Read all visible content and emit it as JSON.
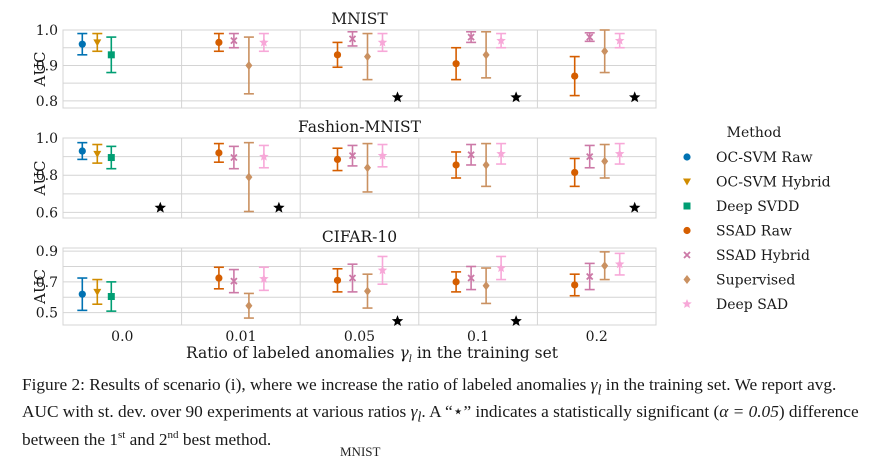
{
  "figure": {
    "xlabel_pre": "Ratio of labeled anomalies ",
    "xlabel_sym": "γ",
    "xlabel_sub": "l",
    "xlabel_post": " in the training set",
    "legend_title": "Method"
  },
  "caption": {
    "lead": "Figure 2: Results of scenario (i), where we increase the ratio of labeled anomalies ",
    "g1": "γ",
    "g1sub": "l",
    "mid1": " in the training set. We report avg. AUC with st. dev. over 90 experiments at various ratios ",
    "g2": "γ",
    "g2sub": "l",
    "mid2": ". A “⋆” indicates a statistically significant (",
    "alpha": "α = 0.05",
    "mid3": ") difference between the 1",
    "sup1": "st",
    "mid4": " and 2",
    "sup2": "nd",
    "tail": " best method."
  },
  "cutoff_text": "MNIST",
  "chart_data": {
    "type": "scatter",
    "xlabel": "Ratio of labeled anomalies γl in the training set",
    "categories": [
      "0.0",
      "0.01",
      "0.05",
      "0.1",
      "0.2"
    ],
    "methods": [
      {
        "name": "OC-SVM Raw",
        "color": "#0072b2",
        "marker": "circle"
      },
      {
        "name": "OC-SVM Hybrid",
        "color": "#d08c00",
        "marker": "triangle"
      },
      {
        "name": "Deep SVDD",
        "color": "#009e73",
        "marker": "square"
      },
      {
        "name": "SSAD Raw",
        "color": "#d55e00",
        "marker": "circle"
      },
      {
        "name": "SSAD Hybrid",
        "color": "#cc79a7",
        "marker": "x"
      },
      {
        "name": "Supervised",
        "color": "#ca9161",
        "marker": "diamond"
      },
      {
        "name": "Deep SAD",
        "color": "#f7a8d8",
        "marker": "star"
      }
    ],
    "panels": [
      {
        "title": "MNIST",
        "ylabel": "AUC",
        "ylim": [
          0.78,
          1.0
        ],
        "yticks": [
          0.8,
          0.9,
          1.0
        ],
        "points": [
          {
            "cat": 0,
            "method": 0,
            "mean": 0.96,
            "sd": 0.03
          },
          {
            "cat": 0,
            "method": 1,
            "mean": 0.965,
            "sd": 0.025
          },
          {
            "cat": 0,
            "method": 2,
            "mean": 0.93,
            "sd": 0.05
          },
          {
            "cat": 1,
            "method": 3,
            "mean": 0.965,
            "sd": 0.025
          },
          {
            "cat": 1,
            "method": 4,
            "mean": 0.97,
            "sd": 0.02
          },
          {
            "cat": 1,
            "method": 5,
            "mean": 0.9,
            "sd": 0.08
          },
          {
            "cat": 1,
            "method": 6,
            "mean": 0.965,
            "sd": 0.025
          },
          {
            "cat": 2,
            "method": 3,
            "mean": 0.93,
            "sd": 0.035
          },
          {
            "cat": 2,
            "method": 4,
            "mean": 0.975,
            "sd": 0.02
          },
          {
            "cat": 2,
            "method": 5,
            "mean": 0.925,
            "sd": 0.065
          },
          {
            "cat": 2,
            "method": 6,
            "mean": 0.965,
            "sd": 0.025
          },
          {
            "cat": 3,
            "method": 3,
            "mean": 0.905,
            "sd": 0.045
          },
          {
            "cat": 3,
            "method": 4,
            "mean": 0.98,
            "sd": 0.015
          },
          {
            "cat": 3,
            "method": 5,
            "mean": 0.93,
            "sd": 0.065
          },
          {
            "cat": 3,
            "method": 6,
            "mean": 0.97,
            "sd": 0.02
          },
          {
            "cat": 4,
            "method": 3,
            "mean": 0.87,
            "sd": 0.055
          },
          {
            "cat": 4,
            "method": 4,
            "mean": 0.98,
            "sd": 0.012
          },
          {
            "cat": 4,
            "method": 5,
            "mean": 0.94,
            "sd": 0.06
          },
          {
            "cat": 4,
            "method": 6,
            "mean": 0.97,
            "sd": 0.02
          }
        ],
        "stars": [
          {
            "cat": 2,
            "value": 0.81
          },
          {
            "cat": 3,
            "value": 0.81
          },
          {
            "cat": 4,
            "value": 0.81
          }
        ]
      },
      {
        "title": "Fashion-MNIST",
        "ylabel": "AUC",
        "ylim": [
          0.57,
          1.0
        ],
        "yticks": [
          0.6,
          0.8,
          1.0
        ],
        "points": [
          {
            "cat": 0,
            "method": 0,
            "mean": 0.93,
            "sd": 0.045
          },
          {
            "cat": 0,
            "method": 1,
            "mean": 0.915,
            "sd": 0.05
          },
          {
            "cat": 0,
            "method": 2,
            "mean": 0.895,
            "sd": 0.06
          },
          {
            "cat": 1,
            "method": 3,
            "mean": 0.92,
            "sd": 0.05
          },
          {
            "cat": 1,
            "method": 4,
            "mean": 0.895,
            "sd": 0.06
          },
          {
            "cat": 1,
            "method": 5,
            "mean": 0.79,
            "sd": 0.185
          },
          {
            "cat": 1,
            "method": 6,
            "mean": 0.9,
            "sd": 0.06
          },
          {
            "cat": 2,
            "method": 3,
            "mean": 0.885,
            "sd": 0.06
          },
          {
            "cat": 2,
            "method": 4,
            "mean": 0.905,
            "sd": 0.055
          },
          {
            "cat": 2,
            "method": 5,
            "mean": 0.84,
            "sd": 0.13
          },
          {
            "cat": 2,
            "method": 6,
            "mean": 0.905,
            "sd": 0.06
          },
          {
            "cat": 3,
            "method": 3,
            "mean": 0.855,
            "sd": 0.07
          },
          {
            "cat": 3,
            "method": 4,
            "mean": 0.91,
            "sd": 0.055
          },
          {
            "cat": 3,
            "method": 5,
            "mean": 0.855,
            "sd": 0.115
          },
          {
            "cat": 3,
            "method": 6,
            "mean": 0.915,
            "sd": 0.055
          },
          {
            "cat": 4,
            "method": 3,
            "mean": 0.815,
            "sd": 0.075
          },
          {
            "cat": 4,
            "method": 4,
            "mean": 0.9,
            "sd": 0.06
          },
          {
            "cat": 4,
            "method": 5,
            "mean": 0.875,
            "sd": 0.09
          },
          {
            "cat": 4,
            "method": 6,
            "mean": 0.915,
            "sd": 0.055
          }
        ],
        "stars": [
          {
            "cat": 0,
            "value": 0.625
          },
          {
            "cat": 1,
            "value": 0.625
          },
          {
            "cat": 4,
            "value": 0.625
          }
        ]
      },
      {
        "title": "CIFAR-10",
        "ylabel": "AUC",
        "ylim": [
          0.42,
          0.92
        ],
        "yticks": [
          0.5,
          0.7,
          0.9
        ],
        "points": [
          {
            "cat": 0,
            "method": 0,
            "mean": 0.62,
            "sd": 0.105
          },
          {
            "cat": 0,
            "method": 1,
            "mean": 0.635,
            "sd": 0.08
          },
          {
            "cat": 0,
            "method": 2,
            "mean": 0.605,
            "sd": 0.095
          },
          {
            "cat": 1,
            "method": 3,
            "mean": 0.725,
            "sd": 0.07
          },
          {
            "cat": 1,
            "method": 4,
            "mean": 0.705,
            "sd": 0.075
          },
          {
            "cat": 1,
            "method": 5,
            "mean": 0.545,
            "sd": 0.08
          },
          {
            "cat": 1,
            "method": 6,
            "mean": 0.72,
            "sd": 0.075
          },
          {
            "cat": 2,
            "method": 3,
            "mean": 0.71,
            "sd": 0.075
          },
          {
            "cat": 2,
            "method": 4,
            "mean": 0.725,
            "sd": 0.09
          },
          {
            "cat": 2,
            "method": 5,
            "mean": 0.64,
            "sd": 0.11
          },
          {
            "cat": 2,
            "method": 6,
            "mean": 0.775,
            "sd": 0.09
          },
          {
            "cat": 3,
            "method": 3,
            "mean": 0.7,
            "sd": 0.065
          },
          {
            "cat": 3,
            "method": 4,
            "mean": 0.725,
            "sd": 0.075
          },
          {
            "cat": 3,
            "method": 5,
            "mean": 0.675,
            "sd": 0.115
          },
          {
            "cat": 3,
            "method": 6,
            "mean": 0.79,
            "sd": 0.075
          },
          {
            "cat": 4,
            "method": 3,
            "mean": 0.68,
            "sd": 0.07
          },
          {
            "cat": 4,
            "method": 4,
            "mean": 0.735,
            "sd": 0.085
          },
          {
            "cat": 4,
            "method": 5,
            "mean": 0.805,
            "sd": 0.09
          },
          {
            "cat": 4,
            "method": 6,
            "mean": 0.815,
            "sd": 0.07
          }
        ],
        "stars": [
          {
            "cat": 2,
            "value": 0.445
          },
          {
            "cat": 3,
            "value": 0.445
          }
        ]
      }
    ],
    "legend": "right",
    "grid": true
  }
}
